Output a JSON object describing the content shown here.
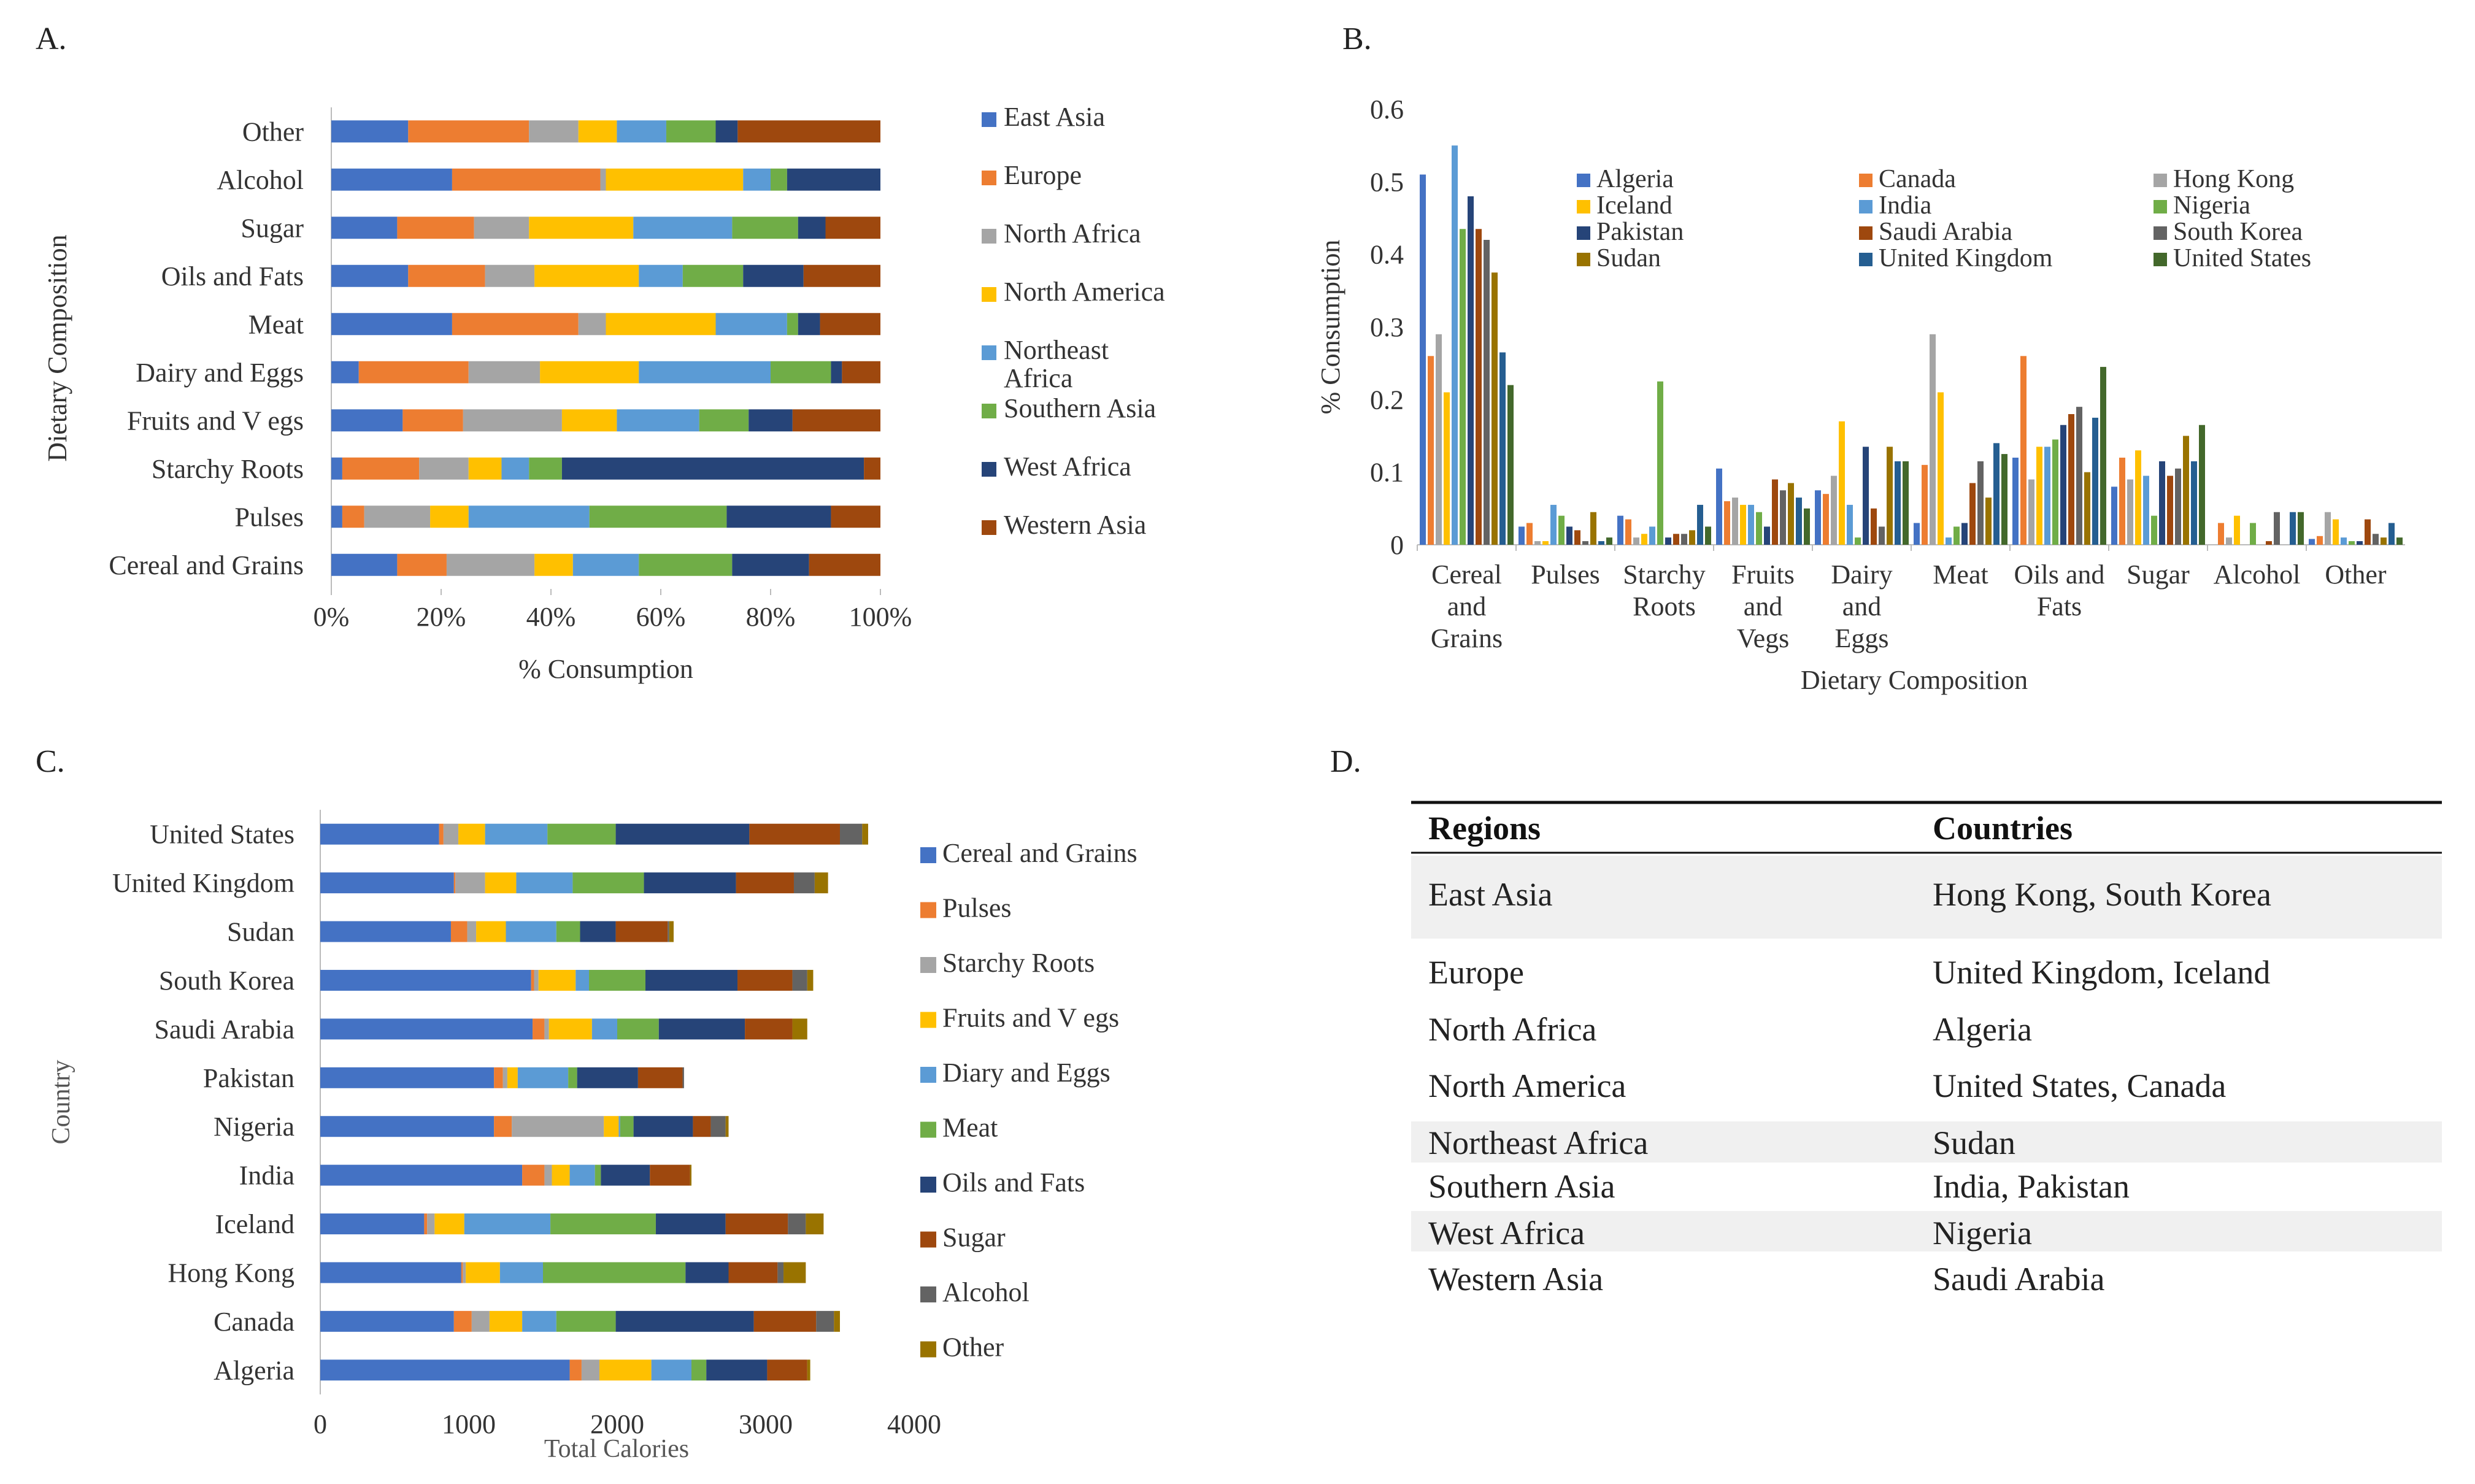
{
  "panel_letters": [
    "A.",
    "B.",
    "C.",
    "D."
  ],
  "colors": {
    "cereal": "#4472C4",
    "pulses": "#ED7D31",
    "starchy": "#A5A5A5",
    "fruits": "#FFC000",
    "dairy": "#5B9BD5",
    "meat": "#70AD47",
    "oils": "#264478",
    "sugar": "#9E480E",
    "alcohol": "#636363",
    "other": "#997300"
  },
  "chart_data": [
    {
      "id": "A",
      "type": "bar",
      "orientation": "horizontal",
      "stacked": "percent",
      "xlabel": "% Consumption",
      "ylabel": "Dietary Composition",
      "xticks": [
        "0%",
        "20%",
        "40%",
        "60%",
        "80%",
        "100%"
      ],
      "categories": [
        "Other",
        "Alcohol",
        "Sugar",
        "Oils and Fats",
        "Meat",
        "Dairy and Eggs",
        "Fruits and V egs",
        "Starchy Roots",
        "Pulses",
        "Cereal and Grains"
      ],
      "series": [
        {
          "name": "East Asia",
          "color": "#4472C4",
          "values": [
            14,
            22,
            12,
            14,
            22,
            5,
            13,
            2,
            2,
            12
          ]
        },
        {
          "name": "Europe",
          "color": "#ED7D31",
          "values": [
            22,
            27,
            14,
            14,
            23,
            20,
            11,
            14,
            4,
            9
          ]
        },
        {
          "name": "North Africa",
          "color": "#A5A5A5",
          "values": [
            9,
            1,
            10,
            9,
            5,
            13,
            18,
            9,
            12,
            16
          ]
        },
        {
          "name": "North America",
          "color": "#FFC000",
          "values": [
            7,
            25,
            19,
            19,
            20,
            18,
            10,
            6,
            7,
            7
          ]
        },
        {
          "name": "Northeast Africa",
          "color": "#5B9BD5",
          "values": [
            9,
            5,
            18,
            8,
            13,
            24,
            15,
            5,
            22,
            12
          ]
        },
        {
          "name": "Southern Asia",
          "color": "#70AD47",
          "values": [
            9,
            3,
            12,
            11,
            2,
            11,
            9,
            6,
            25,
            17
          ]
        },
        {
          "name": "West Africa",
          "color": "#264478",
          "values": [
            4,
            17,
            5,
            11,
            4,
            2,
            8,
            55,
            19,
            14
          ]
        },
        {
          "name": "Western Asia",
          "color": "#9E480E",
          "values": [
            26,
            0,
            10,
            14,
            11,
            7,
            16,
            3,
            9,
            13
          ]
        }
      ]
    },
    {
      "id": "B",
      "type": "bar",
      "orientation": "vertical",
      "xlabel": "Dietary Composition",
      "ylabel": "% Consumption",
      "ylim": [
        0,
        0.6
      ],
      "yticks": [
        "0",
        "0.1",
        "0.2",
        "0.3",
        "0.4",
        "0.5",
        "0.6"
      ],
      "categories": [
        [
          "Cereal",
          "and",
          "Grains"
        ],
        [
          "Pulses"
        ],
        [
          "Starchy",
          "Roots"
        ],
        [
          "Fruits",
          "and",
          "Vegs"
        ],
        [
          "Dairy",
          "and",
          "Eggs"
        ],
        [
          "Meat"
        ],
        [
          "Oils and",
          "Fats"
        ],
        [
          "Sugar"
        ],
        [
          "Alcohol"
        ],
        [
          "Other"
        ]
      ],
      "series": [
        {
          "name": "Algeria",
          "color": "#4472C4",
          "values": [
            0.51,
            0.025,
            0.04,
            0.105,
            0.075,
            0.03,
            0.12,
            0.08,
            0.0,
            0.008
          ]
        },
        {
          "name": "Canada",
          "color": "#ED7D31",
          "values": [
            0.26,
            0.03,
            0.035,
            0.06,
            0.07,
            0.11,
            0.26,
            0.12,
            0.03,
            0.012
          ]
        },
        {
          "name": "Hong Kong",
          "color": "#A5A5A5",
          "values": [
            0.29,
            0.005,
            0.01,
            0.065,
            0.095,
            0.29,
            0.09,
            0.09,
            0.01,
            0.045
          ]
        },
        {
          "name": "Iceland",
          "color": "#FFC000",
          "values": [
            0.21,
            0.005,
            0.015,
            0.055,
            0.17,
            0.21,
            0.135,
            0.13,
            0.04,
            0.035
          ]
        },
        {
          "name": "India",
          "color": "#5B9BD5",
          "values": [
            0.55,
            0.055,
            0.025,
            0.055,
            0.055,
            0.01,
            0.135,
            0.095,
            0.0,
            0.01
          ]
        },
        {
          "name": "Nigeria",
          "color": "#70AD47",
          "values": [
            0.435,
            0.04,
            0.225,
            0.045,
            0.01,
            0.025,
            0.145,
            0.04,
            0.03,
            0.005
          ]
        },
        {
          "name": "Pakistan",
          "color": "#264478",
          "values": [
            0.48,
            0.025,
            0.01,
            0.025,
            0.135,
            0.03,
            0.165,
            0.115,
            0.0,
            0.005
          ]
        },
        {
          "name": "Saudi Arabia",
          "color": "#9E480E",
          "values": [
            0.435,
            0.02,
            0.015,
            0.09,
            0.05,
            0.085,
            0.18,
            0.095,
            0.005,
            0.035
          ]
        },
        {
          "name": "South Korea",
          "color": "#636363",
          "values": [
            0.42,
            0.005,
            0.015,
            0.075,
            0.025,
            0.115,
            0.19,
            0.105,
            0.045,
            0.015
          ]
        },
        {
          "name": "Sudan",
          "color": "#997300",
          "values": [
            0.375,
            0.045,
            0.02,
            0.085,
            0.135,
            0.065,
            0.1,
            0.15,
            0.0,
            0.01
          ]
        },
        {
          "name": "United Kingdom",
          "color": "#255E91",
          "values": [
            0.265,
            0.005,
            0.055,
            0.065,
            0.115,
            0.14,
            0.175,
            0.115,
            0.045,
            0.03
          ]
        },
        {
          "name": "United States",
          "color": "#43682B",
          "values": [
            0.22,
            0.01,
            0.025,
            0.05,
            0.115,
            0.125,
            0.245,
            0.165,
            0.045,
            0.01
          ]
        }
      ]
    },
    {
      "id": "C",
      "type": "bar",
      "orientation": "horizontal",
      "stacked": "absolute",
      "xlabel": "Total Calories",
      "ylabel": "Country",
      "xlim": [
        0,
        4000
      ],
      "xticks": [
        "0",
        "1000",
        "2000",
        "3000",
        "4000"
      ],
      "categories": [
        "United States",
        "United Kingdom",
        "Sudan",
        "South Korea",
        "Saudi Arabia",
        "Pakistan",
        "Nigeria",
        "India",
        "Iceland",
        "Hong Kong",
        "Canada",
        "Algeria"
      ],
      "series": [
        {
          "name": "Cereal and Grains",
          "color": "#4472C4",
          "values": [
            800,
            900,
            880,
            1420,
            1430,
            1170,
            1170,
            1360,
            700,
            950,
            900,
            1680
          ]
        },
        {
          "name": "Pulses",
          "color": "#ED7D31",
          "values": [
            30,
            10,
            110,
            20,
            80,
            60,
            120,
            150,
            20,
            10,
            120,
            80
          ]
        },
        {
          "name": "Starchy Roots",
          "color": "#A5A5A5",
          "values": [
            100,
            200,
            60,
            30,
            30,
            30,
            620,
            50,
            50,
            20,
            120,
            120
          ]
        },
        {
          "name": "Fruits and V egs",
          "color": "#FFC000",
          "values": [
            180,
            210,
            200,
            250,
            290,
            70,
            100,
            120,
            200,
            230,
            220,
            350
          ]
        },
        {
          "name": "Diary and Eggs",
          "color": "#5B9BD5",
          "values": [
            420,
            380,
            340,
            90,
            170,
            340,
            10,
            170,
            580,
            290,
            230,
            270
          ]
        },
        {
          "name": "Meat",
          "color": "#70AD47",
          "values": [
            460,
            480,
            160,
            380,
            280,
            60,
            90,
            40,
            710,
            960,
            400,
            100
          ]
        },
        {
          "name": "Oils and Fats",
          "color": "#264478",
          "values": [
            900,
            620,
            240,
            620,
            580,
            410,
            400,
            330,
            470,
            290,
            930,
            410
          ]
        },
        {
          "name": "Sugar",
          "color": "#9E480E",
          "values": [
            610,
            390,
            350,
            370,
            320,
            300,
            120,
            270,
            420,
            330,
            420,
            270
          ]
        },
        {
          "name": "Alcohol",
          "color": "#636363",
          "values": [
            150,
            140,
            10,
            100,
            0,
            10,
            100,
            0,
            120,
            40,
            120,
            0
          ]
        },
        {
          "name": "Other",
          "color": "#997300",
          "values": [
            40,
            90,
            30,
            40,
            100,
            0,
            20,
            10,
            120,
            150,
            40,
            20
          ]
        }
      ]
    }
  ],
  "table": {
    "headers": [
      "Regions",
      "Countries"
    ],
    "rows": [
      [
        "East Asia",
        "Hong Kong, South Korea"
      ],
      [
        "Europe",
        "United Kingdom, Iceland"
      ],
      [
        "North Africa",
        "Algeria"
      ],
      [
        "North America",
        "United States, Canada"
      ],
      [
        "Northeast Africa",
        "Sudan"
      ],
      [
        "Southern Asia",
        "India, Pakistan"
      ],
      [
        "West Africa",
        "Nigeria"
      ],
      [
        "Western Asia",
        "Saudi Arabia"
      ]
    ]
  }
}
